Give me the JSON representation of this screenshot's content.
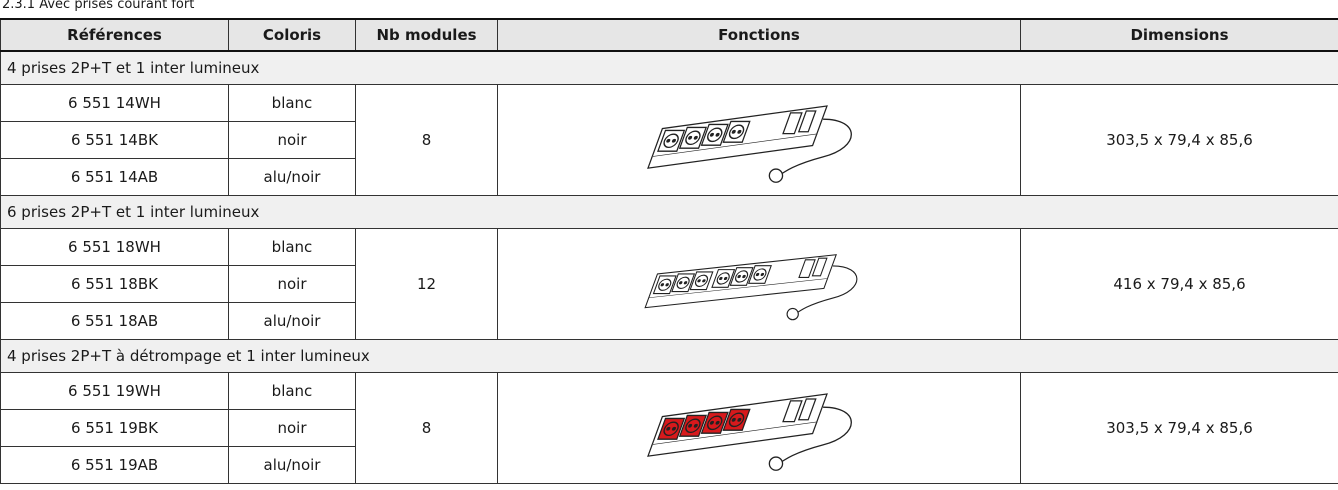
{
  "caption": "2.3.1 Avec prises courant fort",
  "table": {
    "headers": [
      "Références",
      "Coloris",
      "Nb modules",
      "Fonctions",
      "Dimensions"
    ],
    "sections": [
      {
        "title": "4 prises 2P+T et 1 inter lumineux",
        "rows": [
          [
            "6 551 14WH",
            "blanc"
          ],
          [
            "6 551 14BK",
            "noir"
          ],
          [
            "6 551 14AB",
            "alu/noir"
          ]
        ],
        "modules": "8",
        "dimensions": "303,5 x 79,4 x 85,6"
      },
      {
        "title": "6 prises 2P+T et 1 inter lumineux",
        "rows": [
          [
            "6 551 18WH",
            "blanc"
          ],
          [
            "6 551 18BK",
            "noir"
          ],
          [
            "6 551 18AB",
            "alu/noir"
          ]
        ],
        "modules": "12",
        "dimensions": "416 x 79,4 x 85,6"
      },
      {
        "title": "4 prises 2P+T à détrompage et 1 inter lumineux",
        "rows": [
          [
            "6 551 19WH",
            "blanc"
          ],
          [
            "6 551 19BK",
            "noir"
          ],
          [
            "6 551 19AB",
            "alu/noir"
          ]
        ],
        "modules": "8",
        "dimensions": "303,5 x 79,4 x 85,6"
      }
    ]
  }
}
